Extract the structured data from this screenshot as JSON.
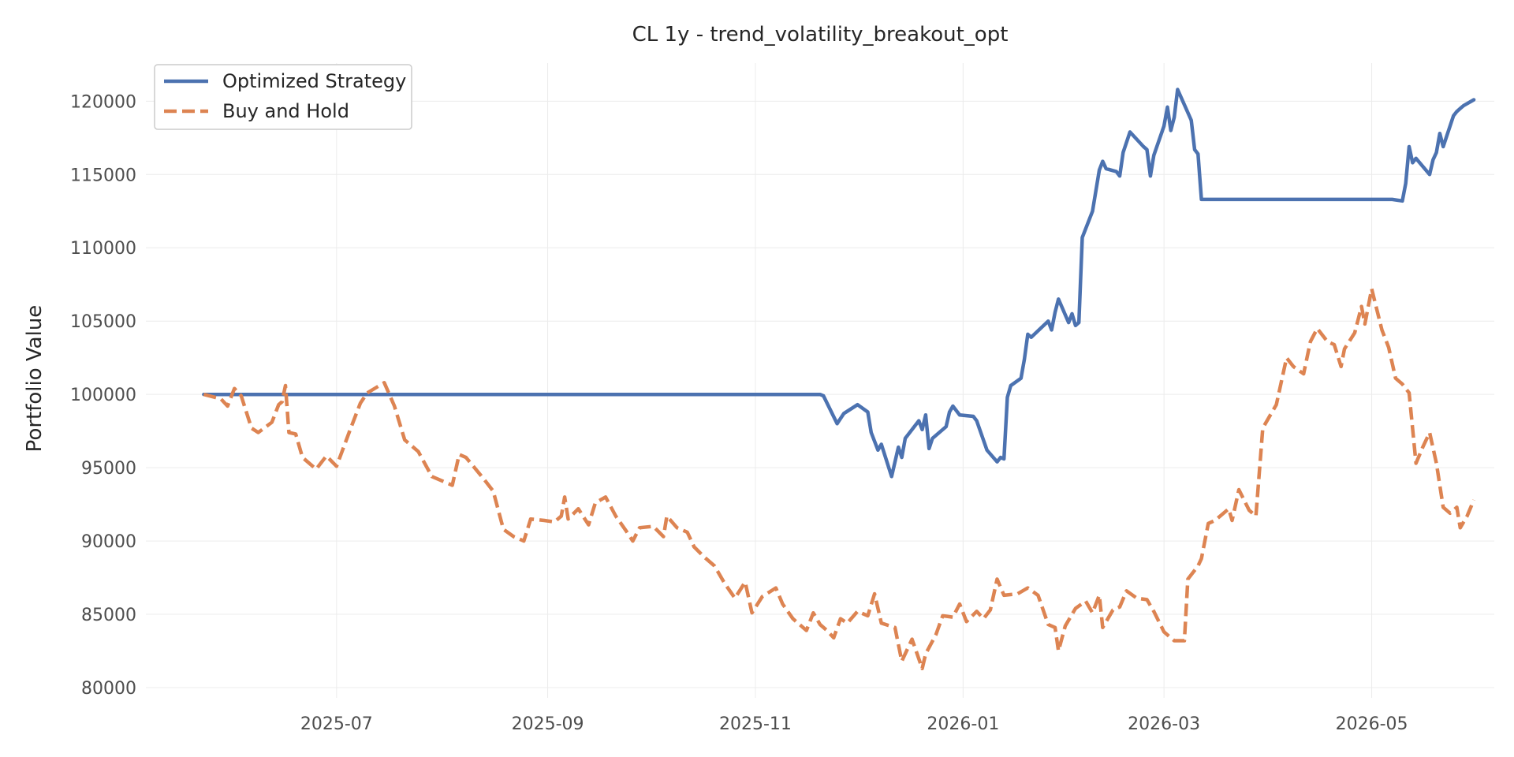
{
  "chart_data": {
    "type": "line",
    "title": "CL 1y - trend_volatility_breakout_opt",
    "xlabel": "",
    "ylabel": "Portfolio Value",
    "x_ticks": [
      "2025-07",
      "2025-09",
      "2025-11",
      "2026-01",
      "2026-03",
      "2026-05"
    ],
    "y_ticks": [
      80000,
      85000,
      90000,
      95000,
      100000,
      105000,
      110000,
      115000,
      120000
    ],
    "xlim": [
      "2025-05-06",
      "2026-06-06"
    ],
    "ylim": [
      79300,
      122600
    ],
    "grid": true,
    "legend_position": "top-left",
    "series": [
      {
        "name": "Optimized Strategy",
        "color": "#4c72b0",
        "style": "solid",
        "points": [
          [
            "2025-05-23",
            100000
          ],
          [
            "2025-07-01",
            100000
          ],
          [
            "2025-09-01",
            100000
          ],
          [
            "2025-11-20",
            100000
          ],
          [
            "2025-11-21",
            99900
          ],
          [
            "2025-11-25",
            98000
          ],
          [
            "2025-11-27",
            98700
          ],
          [
            "2025-12-01",
            99300
          ],
          [
            "2025-12-04",
            98800
          ],
          [
            "2025-12-05",
            97400
          ],
          [
            "2025-12-07",
            96200
          ],
          [
            "2025-12-08",
            96600
          ],
          [
            "2025-12-11",
            94400
          ],
          [
            "2025-12-13",
            96400
          ],
          [
            "2025-12-14",
            95700
          ],
          [
            "2025-12-15",
            97000
          ],
          [
            "2025-12-19",
            98200
          ],
          [
            "2025-12-20",
            97600
          ],
          [
            "2025-12-21",
            98600
          ],
          [
            "2025-12-22",
            96300
          ],
          [
            "2025-12-23",
            97000
          ],
          [
            "2025-12-27",
            97800
          ],
          [
            "2025-12-28",
            98800
          ],
          [
            "2025-12-29",
            99200
          ],
          [
            "2025-12-31",
            98600
          ],
          [
            "2026-01-04",
            98500
          ],
          [
            "2026-01-05",
            98200
          ],
          [
            "2026-01-08",
            96200
          ],
          [
            "2026-01-11",
            95400
          ],
          [
            "2026-01-12",
            95700
          ],
          [
            "2026-01-13",
            95600
          ],
          [
            "2026-01-14",
            99800
          ],
          [
            "2026-01-15",
            100600
          ],
          [
            "2026-01-18",
            101100
          ],
          [
            "2026-01-19",
            102400
          ],
          [
            "2026-01-20",
            104100
          ],
          [
            "2026-01-21",
            103900
          ],
          [
            "2026-01-26",
            105000
          ],
          [
            "2026-01-27",
            104400
          ],
          [
            "2026-01-28",
            105600
          ],
          [
            "2026-01-29",
            106500
          ],
          [
            "2026-02-01",
            104900
          ],
          [
            "2026-02-02",
            105500
          ],
          [
            "2026-02-03",
            104700
          ],
          [
            "2026-02-04",
            104900
          ],
          [
            "2026-02-05",
            110700
          ],
          [
            "2026-02-08",
            112500
          ],
          [
            "2026-02-10",
            115300
          ],
          [
            "2026-02-11",
            115900
          ],
          [
            "2026-02-12",
            115400
          ],
          [
            "2026-02-15",
            115200
          ],
          [
            "2026-02-16",
            114900
          ],
          [
            "2026-02-17",
            116500
          ],
          [
            "2026-02-19",
            117900
          ],
          [
            "2026-02-23",
            116900
          ],
          [
            "2026-02-24",
            116700
          ],
          [
            "2026-02-25",
            114900
          ],
          [
            "2026-02-26",
            116300
          ],
          [
            "2026-03-01",
            118300
          ],
          [
            "2026-03-02",
            119600
          ],
          [
            "2026-03-03",
            118000
          ],
          [
            "2026-03-04",
            118900
          ],
          [
            "2026-03-05",
            120800
          ],
          [
            "2026-03-09",
            118700
          ],
          [
            "2026-03-10",
            116700
          ],
          [
            "2026-03-11",
            116400
          ],
          [
            "2026-03-12",
            113300
          ],
          [
            "2026-03-31",
            113300
          ],
          [
            "2026-05-01",
            113300
          ],
          [
            "2026-05-07",
            113300
          ],
          [
            "2026-05-10",
            113200
          ],
          [
            "2026-05-11",
            114400
          ],
          [
            "2026-05-12",
            116900
          ],
          [
            "2026-05-13",
            115800
          ],
          [
            "2026-05-14",
            116100
          ],
          [
            "2026-05-18",
            115000
          ],
          [
            "2026-05-19",
            116000
          ],
          [
            "2026-05-20",
            116500
          ],
          [
            "2026-05-21",
            117800
          ],
          [
            "2026-05-22",
            116900
          ],
          [
            "2026-05-25",
            119000
          ],
          [
            "2026-05-26",
            119300
          ],
          [
            "2026-05-27",
            119500
          ],
          [
            "2026-05-28",
            119700
          ],
          [
            "2026-05-31",
            120100
          ]
        ]
      },
      {
        "name": "Buy and Hold",
        "color": "#dd8452",
        "style": "dashed",
        "points": [
          [
            "2025-05-23",
            100000
          ],
          [
            "2025-05-28",
            99700
          ],
          [
            "2025-05-30",
            99200
          ],
          [
            "2025-06-01",
            100400
          ],
          [
            "2025-06-03",
            99900
          ],
          [
            "2025-06-06",
            97700
          ],
          [
            "2025-06-08",
            97400
          ],
          [
            "2025-06-12",
            98100
          ],
          [
            "2025-06-14",
            99300
          ],
          [
            "2025-06-15",
            99500
          ],
          [
            "2025-06-16",
            100600
          ],
          [
            "2025-06-17",
            97400
          ],
          [
            "2025-06-19",
            97300
          ],
          [
            "2025-06-21",
            95700
          ],
          [
            "2025-06-25",
            94900
          ],
          [
            "2025-06-28",
            95800
          ],
          [
            "2025-07-01",
            95100
          ],
          [
            "2025-07-05",
            97600
          ],
          [
            "2025-07-08",
            99400
          ],
          [
            "2025-07-10",
            100100
          ],
          [
            "2025-07-15",
            100800
          ],
          [
            "2025-07-18",
            99200
          ],
          [
            "2025-07-21",
            96900
          ],
          [
            "2025-07-25",
            96100
          ],
          [
            "2025-07-29",
            94400
          ],
          [
            "2025-08-04",
            93800
          ],
          [
            "2025-08-06",
            95900
          ],
          [
            "2025-08-08",
            95700
          ],
          [
            "2025-08-13",
            94300
          ],
          [
            "2025-08-16",
            93400
          ],
          [
            "2025-08-19",
            90800
          ],
          [
            "2025-08-22",
            90300
          ],
          [
            "2025-08-25",
            90000
          ],
          [
            "2025-08-27",
            91500
          ],
          [
            "2025-08-31",
            91400
          ],
          [
            "2025-09-03",
            91300
          ],
          [
            "2025-09-05",
            91700
          ],
          [
            "2025-09-06",
            93000
          ],
          [
            "2025-09-07",
            91500
          ],
          [
            "2025-09-10",
            92200
          ],
          [
            "2025-09-13",
            91100
          ],
          [
            "2025-09-15",
            92600
          ],
          [
            "2025-09-18",
            93000
          ],
          [
            "2025-09-21",
            91700
          ],
          [
            "2025-09-24",
            90700
          ],
          [
            "2025-09-26",
            90000
          ],
          [
            "2025-09-28",
            90900
          ],
          [
            "2025-10-02",
            91000
          ],
          [
            "2025-10-05",
            90300
          ],
          [
            "2025-10-06",
            91700
          ],
          [
            "2025-10-09",
            90900
          ],
          [
            "2025-10-12",
            90600
          ],
          [
            "2025-10-14",
            89600
          ],
          [
            "2025-10-17",
            88900
          ],
          [
            "2025-10-20",
            88300
          ],
          [
            "2025-10-23",
            87100
          ],
          [
            "2025-10-26",
            86100
          ],
          [
            "2025-10-29",
            87200
          ],
          [
            "2025-10-31",
            85100
          ],
          [
            "2025-11-03",
            86200
          ],
          [
            "2025-11-07",
            86800
          ],
          [
            "2025-11-09",
            85700
          ],
          [
            "2025-11-12",
            84700
          ],
          [
            "2025-11-15",
            84100
          ],
          [
            "2025-11-16",
            83900
          ],
          [
            "2025-11-18",
            85100
          ],
          [
            "2025-11-20",
            84300
          ],
          [
            "2025-11-22",
            83900
          ],
          [
            "2025-11-24",
            83400
          ],
          [
            "2025-11-26",
            84700
          ],
          [
            "2025-11-28",
            84400
          ],
          [
            "2025-12-01",
            85200
          ],
          [
            "2025-12-04",
            84900
          ],
          [
            "2025-12-06",
            86400
          ],
          [
            "2025-12-08",
            84400
          ],
          [
            "2025-12-12",
            84100
          ],
          [
            "2025-12-14",
            81800
          ],
          [
            "2025-12-17",
            83300
          ],
          [
            "2025-12-20",
            81300
          ],
          [
            "2025-12-21",
            82300
          ],
          [
            "2025-12-24",
            83600
          ],
          [
            "2025-12-26",
            84900
          ],
          [
            "2025-12-29",
            84800
          ],
          [
            "2025-12-31",
            85700
          ],
          [
            "2026-01-02",
            84500
          ],
          [
            "2026-01-05",
            85200
          ],
          [
            "2026-01-07",
            84700
          ],
          [
            "2026-01-09",
            85300
          ],
          [
            "2026-01-11",
            87400
          ],
          [
            "2026-01-13",
            86300
          ],
          [
            "2026-01-17",
            86400
          ],
          [
            "2026-01-20",
            86800
          ],
          [
            "2026-01-23",
            86300
          ],
          [
            "2026-01-26",
            84300
          ],
          [
            "2026-01-28",
            84100
          ],
          [
            "2026-01-29",
            82500
          ],
          [
            "2026-01-31",
            84200
          ],
          [
            "2026-02-03",
            85400
          ],
          [
            "2026-02-06",
            85900
          ],
          [
            "2026-02-08",
            85100
          ],
          [
            "2026-02-10",
            86300
          ],
          [
            "2026-02-11",
            84100
          ],
          [
            "2026-02-14",
            85300
          ],
          [
            "2026-02-16",
            85500
          ],
          [
            "2026-02-18",
            86600
          ],
          [
            "2026-02-21",
            86100
          ],
          [
            "2026-02-24",
            86000
          ],
          [
            "2026-02-26",
            85200
          ],
          [
            "2026-03-01",
            83800
          ],
          [
            "2026-03-04",
            83200
          ],
          [
            "2026-03-07",
            83200
          ],
          [
            "2026-03-08",
            87400
          ],
          [
            "2026-03-11",
            88300
          ],
          [
            "2026-03-12",
            88800
          ],
          [
            "2026-03-14",
            91200
          ],
          [
            "2026-03-16",
            91400
          ],
          [
            "2026-03-20",
            92200
          ],
          [
            "2026-03-21",
            91400
          ],
          [
            "2026-03-23",
            93500
          ],
          [
            "2026-03-26",
            92100
          ],
          [
            "2026-03-28",
            91700
          ],
          [
            "2026-03-30",
            97700
          ],
          [
            "2026-04-03",
            99300
          ],
          [
            "2026-04-06",
            102500
          ],
          [
            "2026-04-08",
            101900
          ],
          [
            "2026-04-11",
            101400
          ],
          [
            "2026-04-13",
            103600
          ],
          [
            "2026-04-15",
            104500
          ],
          [
            "2026-04-18",
            103600
          ],
          [
            "2026-04-20",
            103400
          ],
          [
            "2026-04-22",
            101900
          ],
          [
            "2026-04-23",
            103100
          ],
          [
            "2026-04-26",
            104200
          ],
          [
            "2026-04-28",
            106000
          ],
          [
            "2026-04-29",
            104800
          ],
          [
            "2026-05-01",
            107200
          ],
          [
            "2026-05-04",
            104400
          ],
          [
            "2026-05-06",
            103200
          ],
          [
            "2026-05-08",
            101100
          ],
          [
            "2026-05-10",
            100700
          ],
          [
            "2026-05-12",
            100100
          ],
          [
            "2026-05-14",
            95300
          ],
          [
            "2026-05-16",
            96400
          ],
          [
            "2026-05-18",
            97400
          ],
          [
            "2026-05-20",
            95300
          ],
          [
            "2026-05-22",
            92300
          ],
          [
            "2026-05-24",
            91900
          ],
          [
            "2026-05-26",
            92300
          ],
          [
            "2026-05-27",
            90900
          ],
          [
            "2026-05-29",
            91700
          ],
          [
            "2026-05-31",
            92800
          ]
        ]
      }
    ]
  }
}
